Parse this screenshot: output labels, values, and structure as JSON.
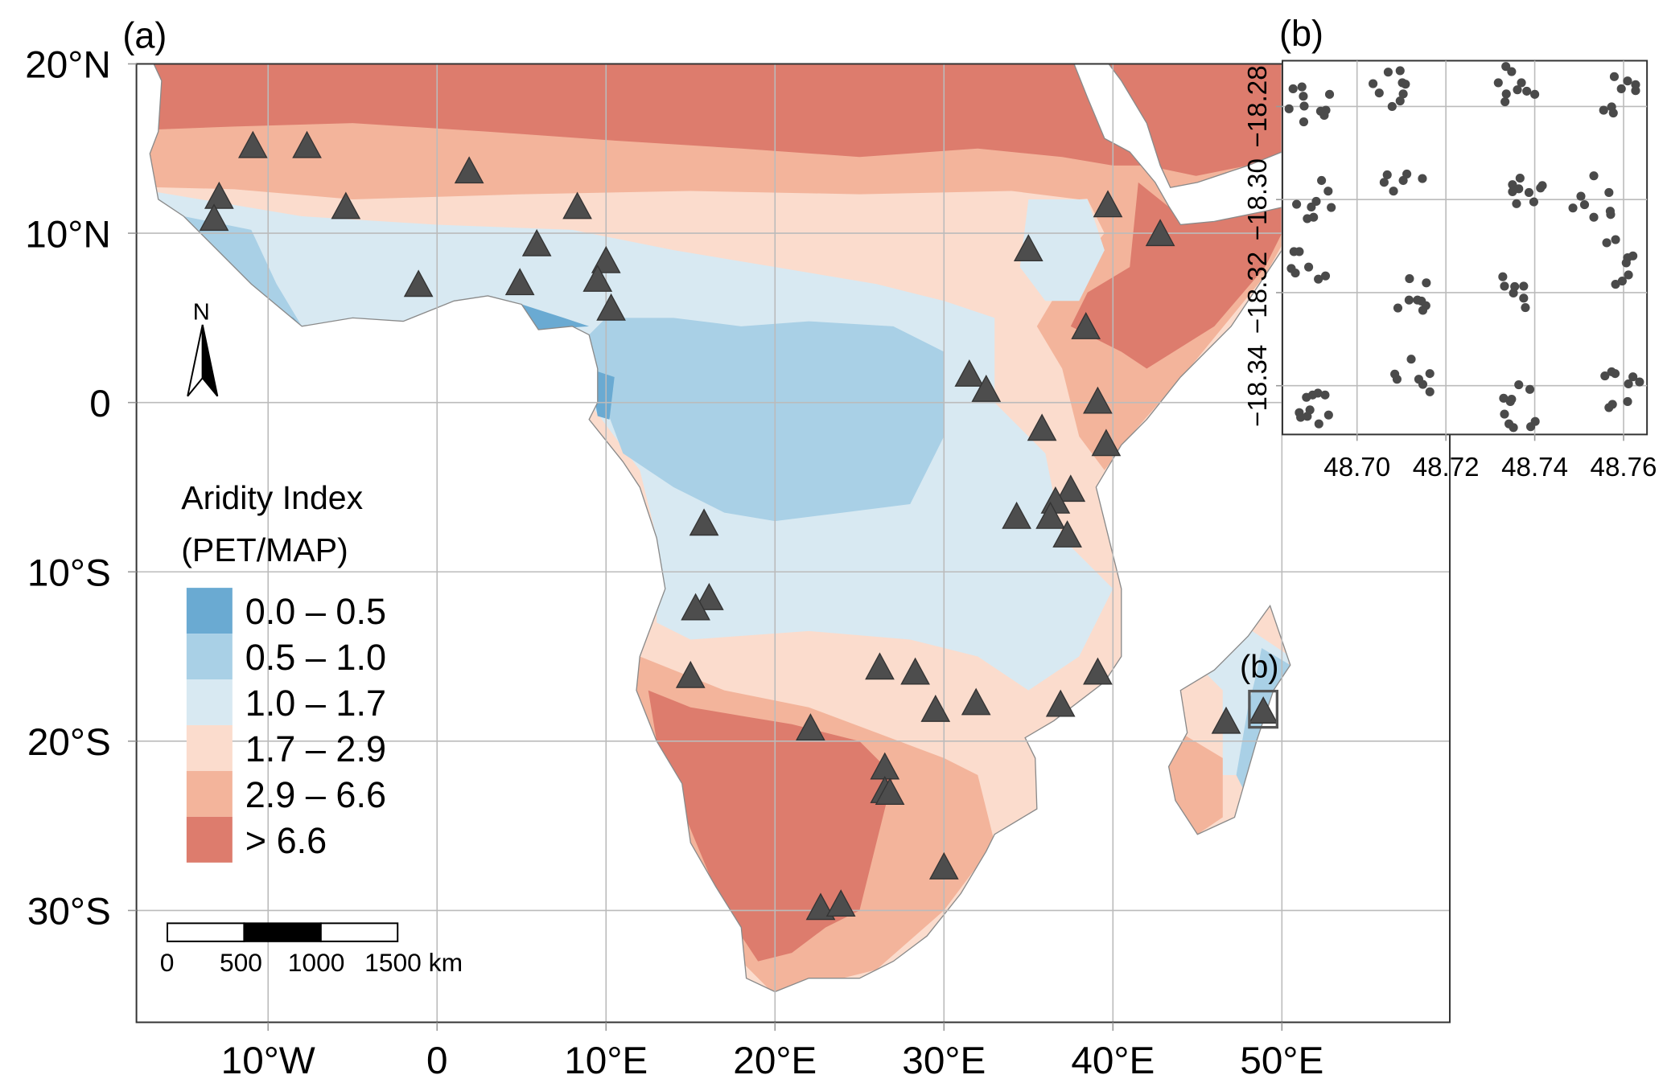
{
  "figure": {
    "panel_a_label": "(a)",
    "panel_b_label": "(b)",
    "inset_marker_label": "(b)"
  },
  "map": {
    "lat_ticks": [
      {
        "value": 20,
        "label": "20°N"
      },
      {
        "value": 10,
        "label": "10°N"
      },
      {
        "value": 0,
        "label": "0"
      },
      {
        "value": -10,
        "label": "10°S"
      },
      {
        "value": -20,
        "label": "20°S"
      },
      {
        "value": -30,
        "label": "30°S"
      }
    ],
    "lon_ticks": [
      {
        "value": -10,
        "label": "10°W"
      },
      {
        "value": 0,
        "label": "0"
      },
      {
        "value": 10,
        "label": "10°E"
      },
      {
        "value": 20,
        "label": "20°E"
      },
      {
        "value": 30,
        "label": "30°E"
      },
      {
        "value": 40,
        "label": "40°E"
      },
      {
        "value": 50,
        "label": "50°E"
      }
    ],
    "lon_range": [
      -17.8,
      59.9
    ],
    "lat_range": [
      -36.6,
      20
    ]
  },
  "legend": {
    "title_line1": "Aridity Index",
    "title_line2": "(PET/MAP)",
    "classes": [
      {
        "label": "0.0 – 0.5",
        "color": "#6aaad2"
      },
      {
        "label": "0.5 – 1.0",
        "color": "#a9d0e6"
      },
      {
        "label": "1.0 – 1.7",
        "color": "#d8e9f2"
      },
      {
        "label": "1.7 – 2.9",
        "color": "#fbdccd"
      },
      {
        "label": "2.9 – 6.6",
        "color": "#f3b49b"
      },
      {
        "label": "> 6.6",
        "color": "#dd7c6d"
      }
    ]
  },
  "scale_bar": {
    "labels": [
      "0",
      "500",
      "1000",
      "1500 km"
    ]
  },
  "north_arrow": {
    "label": "N"
  },
  "sites": [
    [
      -10.9,
      15.1
    ],
    [
      -7.7,
      15.1
    ],
    [
      -12.9,
      12.1
    ],
    [
      -13.2,
      10.8
    ],
    [
      -5.4,
      11.5
    ],
    [
      -1.1,
      6.9
    ],
    [
      1.9,
      13.6
    ],
    [
      4.9,
      7.0
    ],
    [
      5.9,
      9.3
    ],
    [
      8.3,
      11.5
    ],
    [
      10.0,
      8.3
    ],
    [
      9.5,
      7.2
    ],
    [
      10.3,
      5.5
    ],
    [
      15.8,
      -7.2
    ],
    [
      16.1,
      -11.6
    ],
    [
      15.3,
      -12.2
    ],
    [
      15.0,
      -16.2
    ],
    [
      22.1,
      -19.3
    ],
    [
      26.2,
      -15.7
    ],
    [
      28.3,
      -16.0
    ],
    [
      29.5,
      -18.2
    ],
    [
      31.9,
      -17.8
    ],
    [
      26.5,
      -21.6
    ],
    [
      26.5,
      -23.0
    ],
    [
      26.8,
      -23.1
    ],
    [
      30.0,
      -27.5
    ],
    [
      22.7,
      -29.9
    ],
    [
      23.9,
      -29.7
    ],
    [
      31.5,
      1.6
    ],
    [
      32.5,
      0.7
    ],
    [
      35.8,
      -1.6
    ],
    [
      35.0,
      9.0
    ],
    [
      39.7,
      11.6
    ],
    [
      42.8,
      9.9
    ],
    [
      38.4,
      4.4
    ],
    [
      39.1,
      0.0
    ],
    [
      39.6,
      -2.5
    ],
    [
      37.5,
      -5.2
    ],
    [
      36.6,
      -5.9
    ],
    [
      36.3,
      -6.8
    ],
    [
      34.3,
      -6.8
    ],
    [
      37.3,
      -7.9
    ],
    [
      39.1,
      -16.0
    ],
    [
      36.9,
      -17.9
    ],
    [
      46.7,
      -18.9
    ],
    [
      48.9,
      -18.3
    ]
  ],
  "inset": {
    "x_ticks": [
      {
        "value": 48.7,
        "label": "48.70"
      },
      {
        "value": 48.72,
        "label": "48.72"
      },
      {
        "value": 48.74,
        "label": "48.74"
      },
      {
        "value": 48.76,
        "label": "48.76"
      }
    ],
    "y_ticks": [
      {
        "value": -18.28,
        "label": "−18.28"
      },
      {
        "value": -18.3,
        "label": "−18.30"
      },
      {
        "value": -18.32,
        "label": "−18.32"
      },
      {
        "value": -18.34,
        "label": "−18.34"
      }
    ],
    "points": [
      [
        48.6856,
        -18.2762
      ],
      [
        48.6876,
        -18.2758
      ],
      [
        48.6879,
        -18.2778
      ],
      [
        48.6881,
        -18.2799
      ],
      [
        48.6847,
        -18.2805
      ],
      [
        48.6918,
        -18.281
      ],
      [
        48.693,
        -18.2808
      ],
      [
        48.6926,
        -18.2819
      ],
      [
        48.688,
        -18.2833
      ],
      [
        48.6938,
        -18.2774
      ],
      [
        48.7036,
        -18.2751
      ],
      [
        48.705,
        -18.2771
      ],
      [
        48.707,
        -18.2726
      ],
      [
        48.7097,
        -18.2723
      ],
      [
        48.7102,
        -18.2749
      ],
      [
        48.7109,
        -18.2752
      ],
      [
        48.7104,
        -18.2773
      ],
      [
        48.7097,
        -18.2788
      ],
      [
        48.7079,
        -18.28
      ],
      [
        48.7335,
        -18.2714
      ],
      [
        48.7348,
        -18.2725
      ],
      [
        48.7318,
        -18.2749
      ],
      [
        48.737,
        -18.2749
      ],
      [
        48.7361,
        -18.2764
      ],
      [
        48.7382,
        -18.2767
      ],
      [
        48.74,
        -18.2774
      ],
      [
        48.7336,
        -18.2773
      ],
      [
        48.7333,
        -18.279
      ],
      [
        48.7579,
        -18.2736
      ],
      [
        48.7609,
        -18.2745
      ],
      [
        48.7627,
        -18.2753
      ],
      [
        48.7627,
        -18.2766
      ],
      [
        48.7595,
        -18.2762
      ],
      [
        48.7555,
        -18.2808
      ],
      [
        48.7573,
        -18.2801
      ],
      [
        48.7577,
        -18.2814
      ],
      [
        48.692,
        -18.2959
      ],
      [
        48.6935,
        -18.2982
      ],
      [
        48.6864,
        -18.301
      ],
      [
        48.6908,
        -18.3004
      ],
      [
        48.6897,
        -18.3016
      ],
      [
        48.6942,
        -18.3017
      ],
      [
        48.6888,
        -18.3041
      ],
      [
        48.6902,
        -18.3038
      ],
      [
        48.7061,
        -18.2963
      ],
      [
        48.7068,
        -18.2947
      ],
      [
        48.7082,
        -18.2982
      ],
      [
        48.7104,
        -18.2959
      ],
      [
        48.7112,
        -18.2945
      ],
      [
        48.7147,
        -18.2955
      ],
      [
        48.7367,
        -18.2954
      ],
      [
        48.735,
        -18.2968
      ],
      [
        48.735,
        -18.2983
      ],
      [
        48.7364,
        -18.2977
      ],
      [
        48.7387,
        -18.2985
      ],
      [
        48.7413,
        -18.2975
      ],
      [
        48.7417,
        -18.297
      ],
      [
        48.7359,
        -18.3009
      ],
      [
        48.7398,
        -18.3005
      ],
      [
        48.7533,
        -18.2949
      ],
      [
        48.7504,
        -18.2993
      ],
      [
        48.7486,
        -18.3018
      ],
      [
        48.7512,
        -18.3011
      ],
      [
        48.7533,
        -18.3038
      ],
      [
        48.7567,
        -18.2985
      ],
      [
        48.757,
        -18.3025
      ],
      [
        48.7571,
        -18.3032
      ],
      [
        48.6858,
        -18.3112
      ],
      [
        48.687,
        -18.3112
      ],
      [
        48.6852,
        -18.3148
      ],
      [
        48.6861,
        -18.3158
      ],
      [
        48.6891,
        -18.3145
      ],
      [
        48.6913,
        -18.3171
      ],
      [
        48.6929,
        -18.3164
      ],
      [
        48.7562,
        -18.3093
      ],
      [
        48.7582,
        -18.3086
      ],
      [
        48.7609,
        -18.3125
      ],
      [
        48.7621,
        -18.3121
      ],
      [
        48.7606,
        -18.3136
      ],
      [
        48.7582,
        -18.3182
      ],
      [
        48.7597,
        -18.3175
      ],
      [
        48.7611,
        -18.3162
      ],
      [
        48.7118,
        -18.317
      ],
      [
        48.7156,
        -18.3179
      ],
      [
        48.7092,
        -18.3233
      ],
      [
        48.7117,
        -18.3216
      ],
      [
        48.7136,
        -18.3216
      ],
      [
        48.7145,
        -18.3218
      ],
      [
        48.7155,
        -18.3228
      ],
      [
        48.7148,
        -18.3238
      ],
      [
        48.7328,
        -18.3166
      ],
      [
        48.7332,
        -18.3186
      ],
      [
        48.7355,
        -18.3187
      ],
      [
        48.7375,
        -18.3186
      ],
      [
        48.7352,
        -18.3201
      ],
      [
        48.7375,
        -18.3212
      ],
      [
        48.7379,
        -18.3232
      ],
      [
        48.6886,
        -18.3425
      ],
      [
        48.69,
        -18.342
      ],
      [
        48.6912,
        -18.3416
      ],
      [
        48.6928,
        -18.342
      ],
      [
        48.687,
        -18.3458
      ],
      [
        48.6894,
        -18.3452
      ],
      [
        48.6873,
        -18.3468
      ],
      [
        48.6888,
        -18.3466
      ],
      [
        48.6936,
        -18.3463
      ],
      [
        48.6914,
        -18.3482
      ],
      [
        48.7122,
        -18.3343
      ],
      [
        48.7085,
        -18.3375
      ],
      [
        48.709,
        -18.3386
      ],
      [
        48.7139,
        -18.3386
      ],
      [
        48.7148,
        -18.3397
      ],
      [
        48.7164,
        -18.3374
      ],
      [
        48.7164,
        -18.3413
      ],
      [
        48.7364,
        -18.3398
      ],
      [
        48.7389,
        -18.3408
      ],
      [
        48.733,
        -18.3427
      ],
      [
        48.7348,
        -18.3429
      ],
      [
        48.7345,
        -18.3434
      ],
      [
        48.7332,
        -18.3461
      ],
      [
        48.7342,
        -18.3482
      ],
      [
        48.7352,
        -18.349
      ],
      [
        48.7391,
        -18.3488
      ],
      [
        48.7401,
        -18.3477
      ],
      [
        48.7558,
        -18.3379
      ],
      [
        48.7573,
        -18.337
      ],
      [
        48.7581,
        -18.3374
      ],
      [
        48.7621,
        -18.3381
      ],
      [
        48.7636,
        -18.3392
      ],
      [
        48.7611,
        -18.3396
      ],
      [
        48.7609,
        -18.3434
      ],
      [
        48.7567,
        -18.3447
      ],
      [
        48.7575,
        -18.344
      ]
    ]
  }
}
